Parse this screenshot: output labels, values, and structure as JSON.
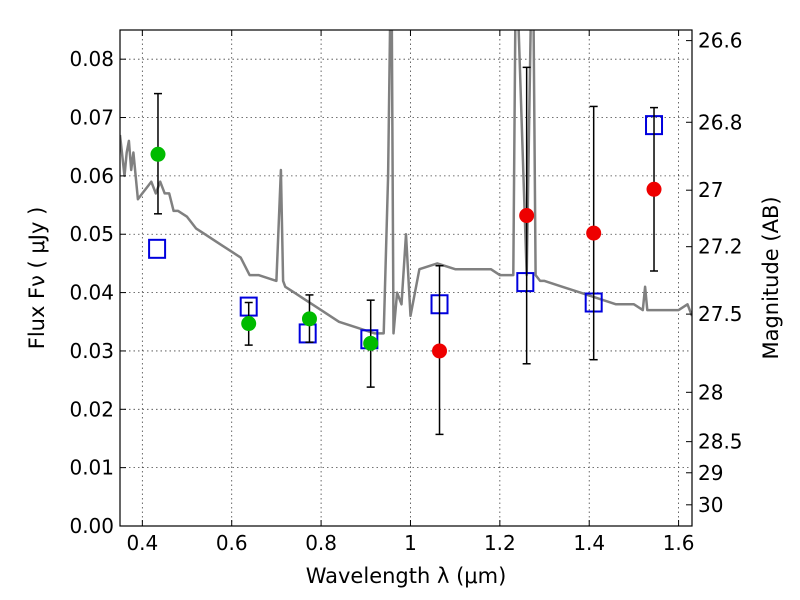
{
  "chart_data": {
    "type": "scatter",
    "xlabel": "Wavelength  λ (μm)",
    "ylabel": "Flux  Fν  ( μJy )",
    "y2label": "Magnitude (AB)",
    "xlim": [
      0.35,
      1.63
    ],
    "ylim": [
      0.0,
      0.085
    ],
    "grid": true,
    "x_ticks": [
      0.4,
      0.6,
      0.8,
      1.0,
      1.2,
      1.4,
      1.6
    ],
    "x_tick_labels": [
      "0.4",
      "0.6",
      "0.8",
      "1",
      "1.2",
      "1.4",
      "1.6"
    ],
    "y_ticks": [
      0.0,
      0.01,
      0.02,
      0.03,
      0.04,
      0.05,
      0.06,
      0.07,
      0.08
    ],
    "y_tick_labels": [
      "0.00",
      "0.01",
      "0.02",
      "0.03",
      "0.04",
      "0.05",
      "0.06",
      "0.07",
      "0.08"
    ],
    "y2_ticks": [
      26.6,
      26.8,
      27,
      27.2,
      27.5,
      28,
      28.5,
      29,
      30
    ],
    "y2_tick_labels": [
      "26.6",
      "26.8",
      "27",
      "27.2",
      "27.5",
      "28",
      "28.5",
      "29",
      "30"
    ],
    "series": [
      {
        "color": "#808080",
        "marker": "line",
        "x": [
          0.35,
          0.36,
          0.365,
          0.37,
          0.375,
          0.38,
          0.39,
          0.4,
          0.41,
          0.42,
          0.43,
          0.44,
          0.45,
          0.46,
          0.47,
          0.48,
          0.5,
          0.52,
          0.54,
          0.56,
          0.58,
          0.6,
          0.62,
          0.64,
          0.66,
          0.7,
          0.71,
          0.715,
          0.72,
          0.74,
          0.76,
          0.8,
          0.84,
          0.88,
          0.92,
          0.94,
          0.95,
          0.955,
          0.958,
          0.962,
          0.97,
          0.98,
          0.99,
          1.0,
          1.02,
          1.06,
          1.1,
          1.14,
          1.18,
          1.2,
          1.22,
          1.23,
          1.235,
          1.24,
          1.26,
          1.27,
          1.275,
          1.28,
          1.29,
          1.3,
          1.34,
          1.38,
          1.42,
          1.46,
          1.5,
          1.52,
          1.525,
          1.53,
          1.56,
          1.6,
          1.62,
          1.63
        ],
        "y": [
          0.067,
          0.06,
          0.064,
          0.066,
          0.061,
          0.064,
          0.056,
          0.057,
          0.058,
          0.059,
          0.057,
          0.059,
          0.057,
          0.057,
          0.054,
          0.054,
          0.053,
          0.051,
          0.05,
          0.049,
          0.048,
          0.047,
          0.046,
          0.043,
          0.043,
          0.042,
          0.061,
          0.042,
          0.041,
          0.04,
          0.039,
          0.037,
          0.035,
          0.034,
          0.033,
          0.033,
          0.06,
          0.09,
          0.09,
          0.033,
          0.04,
          0.038,
          0.05,
          0.036,
          0.044,
          0.045,
          0.044,
          0.044,
          0.044,
          0.043,
          0.043,
          0.043,
          0.09,
          0.09,
          0.043,
          0.09,
          0.09,
          0.043,
          0.042,
          0.042,
          0.041,
          0.04,
          0.039,
          0.038,
          0.038,
          0.037,
          0.041,
          0.037,
          0.037,
          0.037,
          0.038,
          0.036
        ]
      },
      {
        "color": "#0000dd",
        "marker": "open-square",
        "x": [
          0.433,
          0.638,
          0.77,
          0.908,
          1.065,
          1.257,
          1.41,
          1.545
        ],
        "y": [
          0.0475,
          0.0376,
          0.033,
          0.032,
          0.038,
          0.0418,
          0.0383,
          0.0687
        ]
      },
      {
        "color": "#00bb00",
        "marker": "filled-circle",
        "x": [
          0.435,
          0.638,
          0.774,
          0.911
        ],
        "y": [
          0.0637,
          0.0347,
          0.0355,
          0.0313
        ],
        "yerr_low": [
          0.0535,
          0.031,
          0.0315,
          0.0238
        ],
        "yerr_high": [
          0.0741,
          0.0383,
          0.0396,
          0.0387
        ]
      },
      {
        "color": "#ee0000",
        "marker": "filled-circle",
        "x": [
          1.065,
          1.26,
          1.41,
          1.545
        ],
        "y": [
          0.03,
          0.0532,
          0.0502,
          0.0577
        ],
        "yerr_low": [
          0.0157,
          0.0278,
          0.0285,
          0.0437
        ],
        "yerr_high": [
          0.0446,
          0.0786,
          0.0719,
          0.0717
        ]
      }
    ]
  }
}
